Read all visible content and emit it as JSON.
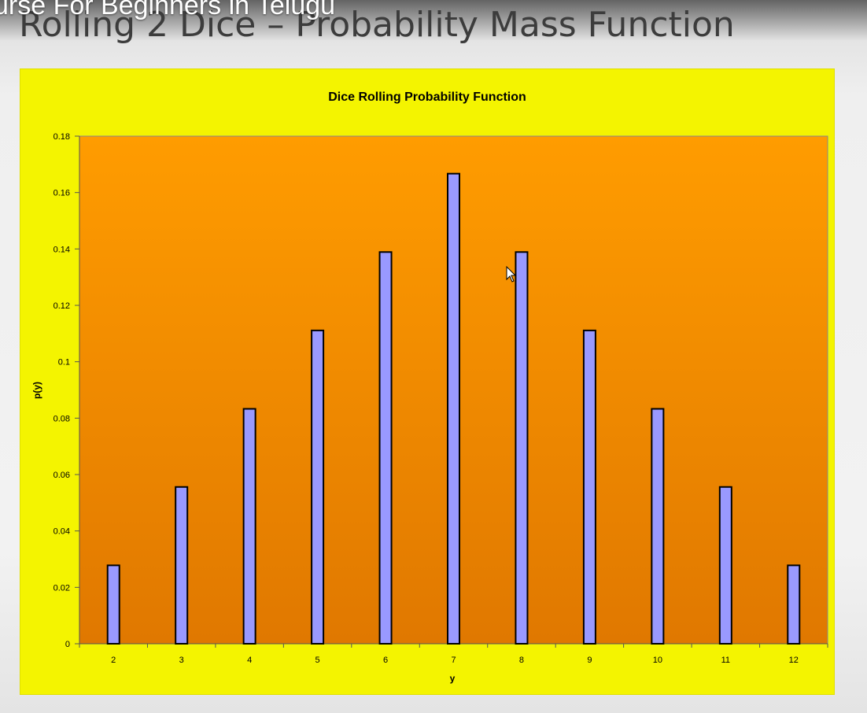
{
  "video": {
    "title_fragment": "urse For Beginners in Telugu"
  },
  "slide": {
    "title": "Rolling 2 Dice – Probability Mass Function"
  },
  "colors": {
    "panel_bg": "#f4f400",
    "plot_bg_top": "#ff9c00",
    "plot_bg_bottom": "#e07800",
    "bar_fill": "#9999ff",
    "bar_stroke": "#000000"
  },
  "chart_data": {
    "type": "bar",
    "title": "Dice Rolling Probability Function",
    "xlabel": "y",
    "ylabel": "p(y)",
    "categories": [
      "2",
      "3",
      "4",
      "5",
      "6",
      "7",
      "8",
      "9",
      "10",
      "11",
      "12"
    ],
    "values": [
      0.0278,
      0.0556,
      0.0833,
      0.1111,
      0.1389,
      0.1667,
      0.1389,
      0.1111,
      0.0833,
      0.0556,
      0.0278
    ],
    "ylim": [
      0,
      0.18
    ],
    "yticks": [
      "0",
      "0.02",
      "0.04",
      "0.06",
      "0.08",
      "0.1",
      "0.12",
      "0.14",
      "0.16",
      "0.18"
    ],
    "ytick_values": [
      0,
      0.02,
      0.04,
      0.06,
      0.08,
      0.1,
      0.12,
      0.14,
      0.16,
      0.18
    ],
    "grid": false,
    "legend": "none"
  }
}
